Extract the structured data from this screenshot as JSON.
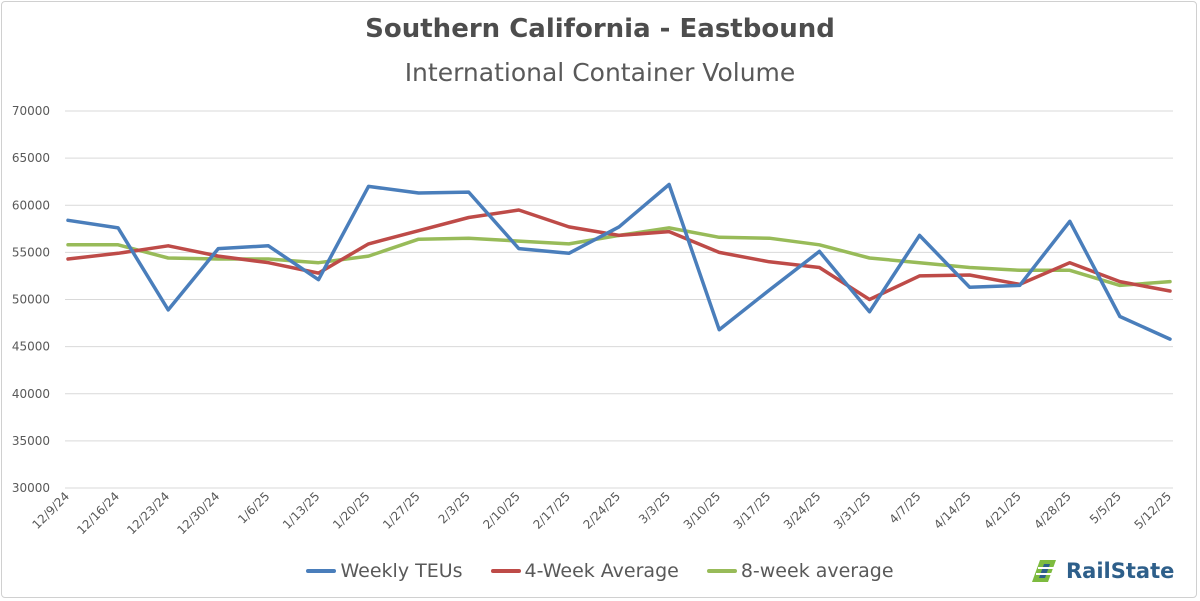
{
  "chart_data": {
    "type": "line",
    "title": "Southern California - Eastbound",
    "subtitle": "International Container Volume",
    "ylim": [
      30000,
      70000
    ],
    "yticks": [
      30000,
      35000,
      40000,
      45000,
      50000,
      55000,
      60000,
      65000,
      70000
    ],
    "grid": true,
    "legend_position": "bottom",
    "categories": [
      "12/9/24",
      "12/16/24",
      "12/23/24",
      "12/30/24",
      "1/6/25",
      "1/13/25",
      "1/20/25",
      "1/27/25",
      "2/3/25",
      "2/10/25",
      "2/17/25",
      "2/24/25",
      "3/3/25",
      "3/10/25",
      "3/17/25",
      "3/24/25",
      "3/31/25",
      "4/7/25",
      "4/14/25",
      "4/21/25",
      "4/28/25",
      "5/5/25",
      "5/12/25"
    ],
    "series": [
      {
        "name": "Weekly TEUs",
        "color": "#4a7ebb",
        "values": [
          58400,
          57600,
          48900,
          55400,
          55700,
          52100,
          62000,
          61300,
          61400,
          55400,
          54900,
          57700,
          62200,
          46800,
          51000,
          55100,
          48700,
          56800,
          51300,
          51500,
          58300,
          48200,
          45800
        ]
      },
      {
        "name": "4-Week Average",
        "color": "#be4b48",
        "values": [
          54300,
          54900,
          55700,
          54600,
          53900,
          52800,
          55900,
          57300,
          58700,
          59500,
          57700,
          56800,
          57200,
          55000,
          54000,
          53400,
          50000,
          52500,
          52600,
          51600,
          53900,
          51900,
          50900
        ]
      },
      {
        "name": "8-week average",
        "color": "#98bb59",
        "values": [
          55800,
          55800,
          54400,
          54300,
          54300,
          53900,
          54600,
          56400,
          56500,
          56200,
          55900,
          56800,
          57600,
          56600,
          56500,
          55800,
          54400,
          53900,
          53400,
          53100,
          53100,
          51500,
          51900
        ]
      }
    ]
  },
  "logo": {
    "text": "RailState"
  }
}
